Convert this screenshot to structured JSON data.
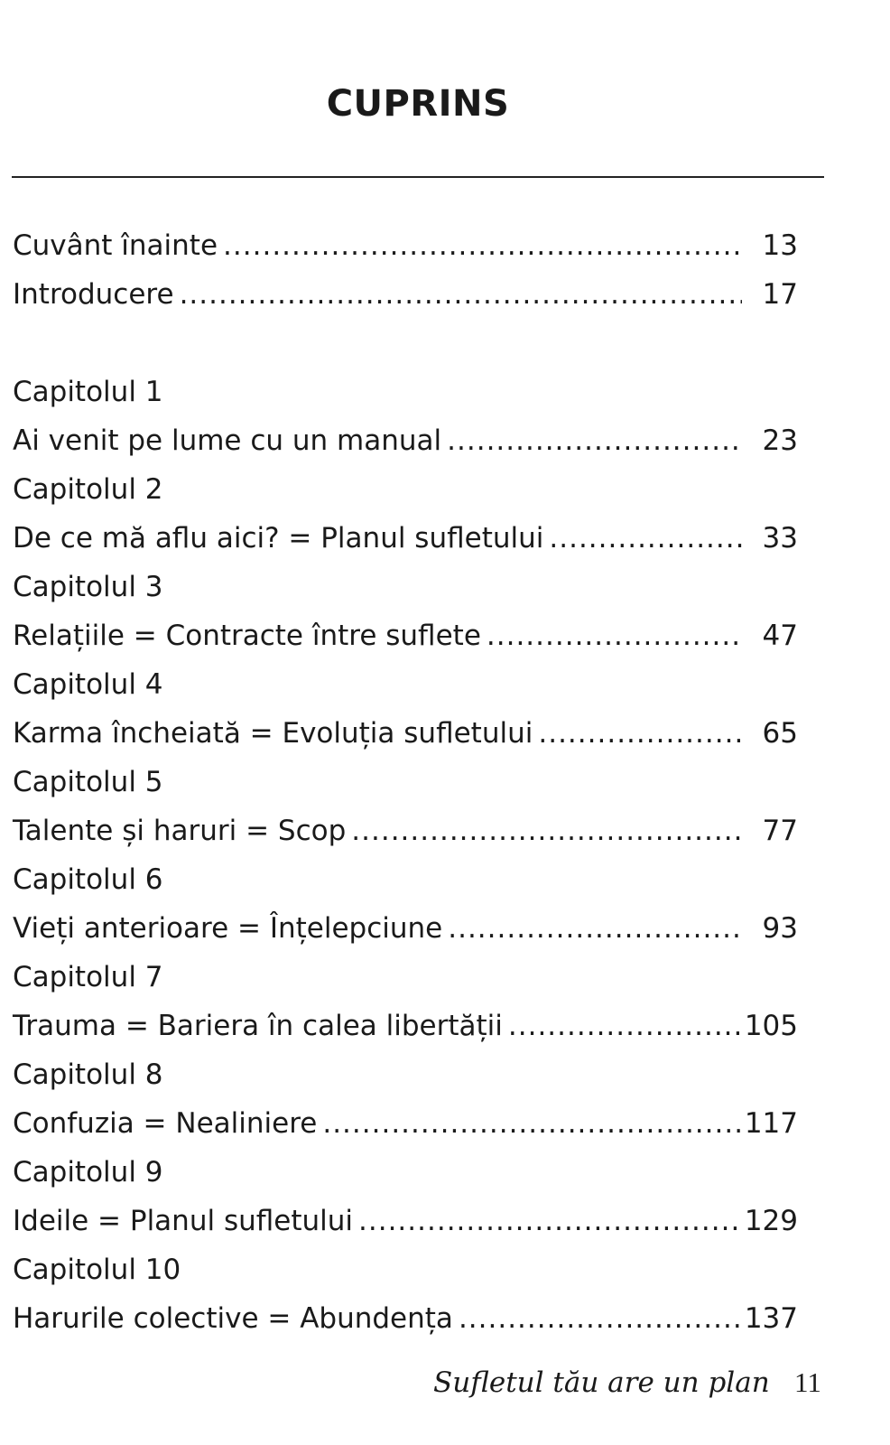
{
  "title": "CUPRINS",
  "front": [
    {
      "title": "Cuvânt înainte",
      "page": "13"
    },
    {
      "title": "Introducere",
      "page": "17"
    }
  ],
  "chapters": [
    {
      "label": "Capitolul 1",
      "title": "Ai venit pe lume cu un manual",
      "page": "23"
    },
    {
      "label": "Capitolul 2",
      "title": "De ce mă aflu aici? = Planul sufletului",
      "page": "33"
    },
    {
      "label": "Capitolul 3",
      "title": "Relațiile = Contracte între suflete",
      "page": "47"
    },
    {
      "label": "Capitolul 4",
      "title": "Karma încheiată = Evoluția sufletului",
      "page": "65"
    },
    {
      "label": "Capitolul 5",
      "title": "Talente și haruri = Scop",
      "page": "77"
    },
    {
      "label": "Capitolul 6",
      "title": "Vieți anterioare = Înțelepciune",
      "page": "93"
    },
    {
      "label": "Capitolul 7",
      "title": "Trauma = Bariera în calea libertății",
      "page": "105"
    },
    {
      "label": "Capitolul 8",
      "title": "Confuzia = Nealiniere",
      "page": "117"
    },
    {
      "label": "Capitolul 9",
      "title": "Ideile = Planul sufletului",
      "page": "129"
    },
    {
      "label": "Capitolul 10",
      "title": "Harurile colective = Abundența",
      "page": "137"
    }
  ],
  "footer": {
    "book_title": "Sufletul tău are un plan",
    "page_number": "11"
  }
}
